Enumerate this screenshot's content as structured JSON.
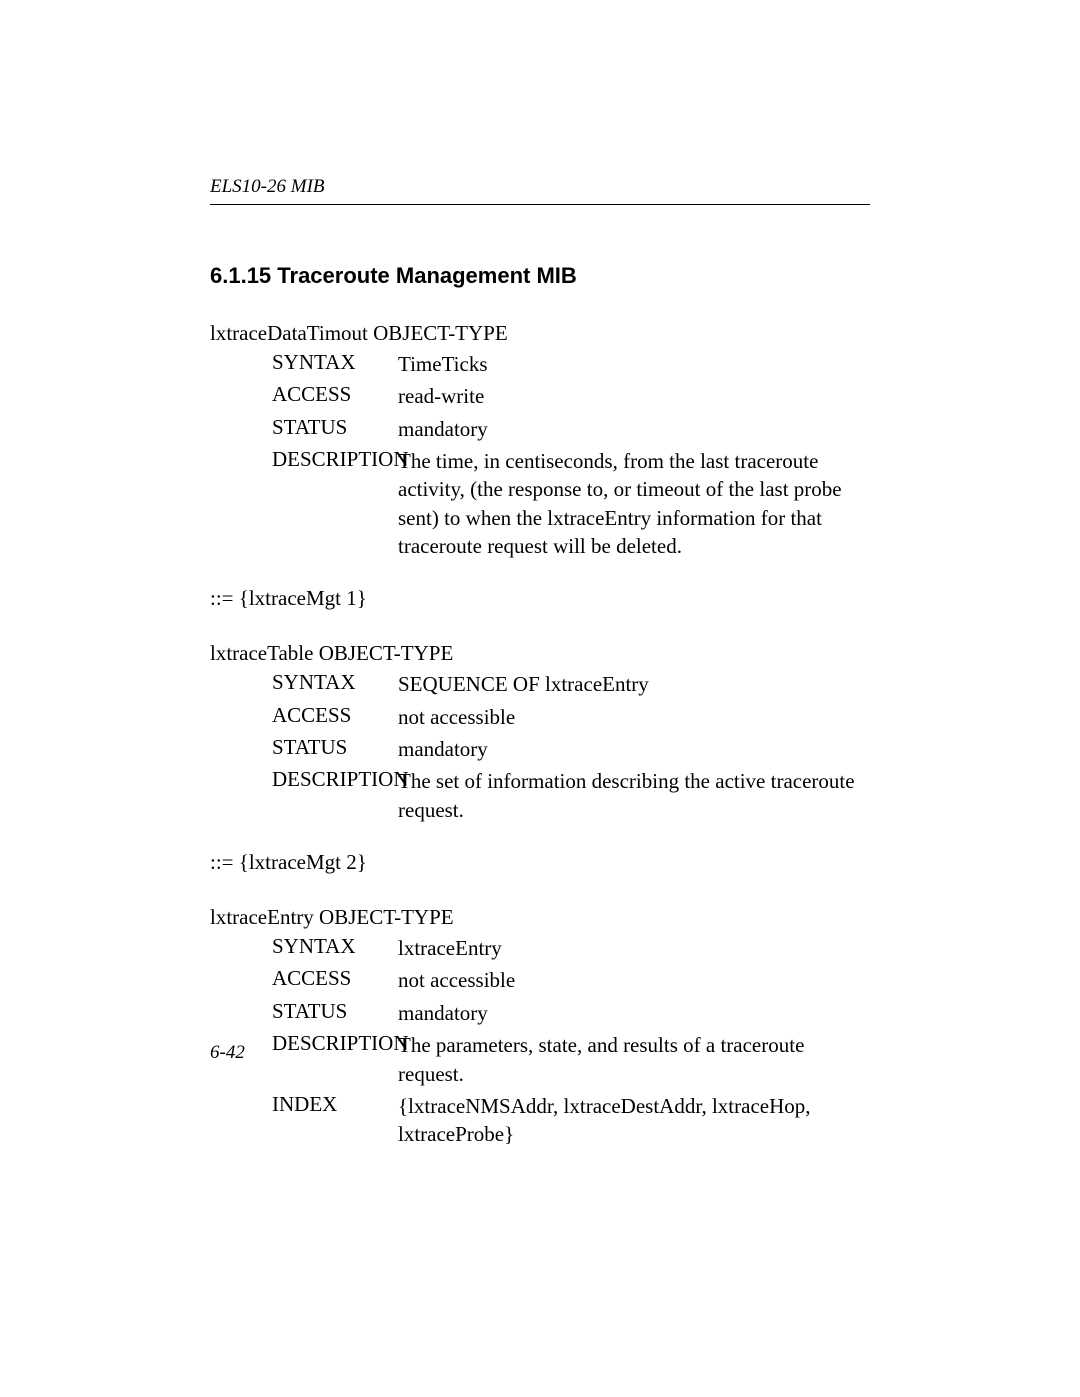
{
  "header": {
    "text": "ELS10-26 MIB"
  },
  "section": {
    "heading": "6.1.15 Traceroute Management MIB"
  },
  "objects": [
    {
      "title": "lxtraceDataTimout OBJECT-TYPE",
      "attrs": [
        {
          "label": "SYNTAX",
          "value": "TimeTicks"
        },
        {
          "label": "ACCESS",
          "value": "read-write"
        },
        {
          "label": "STATUS",
          "value": "mandatory"
        },
        {
          "label": "DESCRIPTION",
          "value": "The time, in centiseconds, from the last traceroute activity, (the response to, or timeout of the last probe sent) to when the lxtraceEntry information for that traceroute request will be deleted."
        }
      ],
      "oid": "::= {lxtraceMgt 1}"
    },
    {
      "title": "lxtraceTable OBJECT-TYPE",
      "attrs": [
        {
          "label": "SYNTAX",
          "value": "SEQUENCE OF lxtraceEntry"
        },
        {
          "label": "ACCESS",
          "value": "not accessible"
        },
        {
          "label": "STATUS",
          "value": "mandatory"
        },
        {
          "label": "DESCRIPTION",
          "value": "The set of information describing the active traceroute request."
        }
      ],
      "oid": "::= {lxtraceMgt 2}"
    },
    {
      "title": "lxtraceEntry OBJECT-TYPE",
      "attrs": [
        {
          "label": "SYNTAX",
          "value": "lxtraceEntry"
        },
        {
          "label": "ACCESS",
          "value": "not accessible"
        },
        {
          "label": "STATUS",
          "value": "mandatory"
        },
        {
          "label": "DESCRIPTION",
          "value": "The parameters, state, and results of a traceroute request."
        },
        {
          "label": "INDEX",
          "value": "{lxtraceNMSAddr, lxtraceDestAddr, lxtraceHop, lxtraceProbe}"
        }
      ],
      "oid": ""
    }
  ],
  "footer": {
    "page": "6-42"
  }
}
